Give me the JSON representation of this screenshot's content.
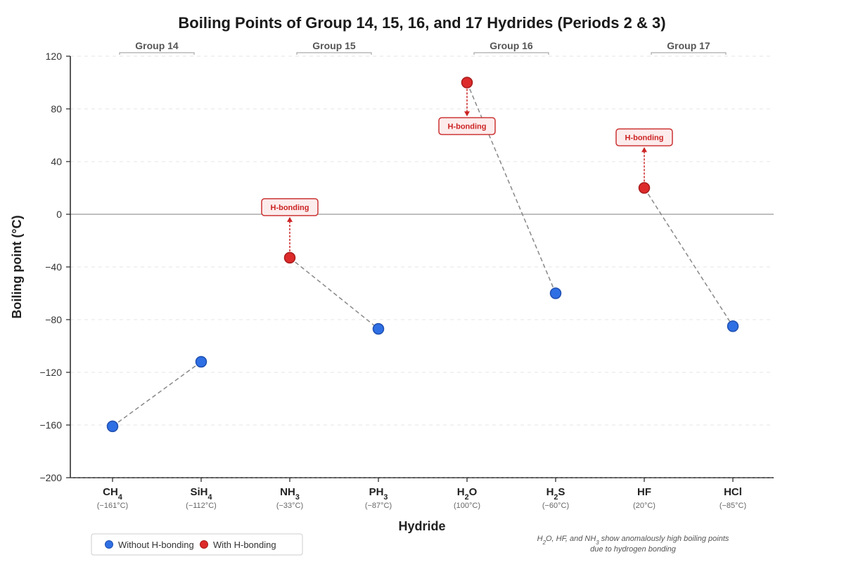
{
  "chart_data": {
    "type": "scatter",
    "title": "Boiling Points of Group 14, 15, 16, and 17 Hydrides (Periods 2 & 3)",
    "xlabel": "Hydride",
    "ylabel": "Boiling point (°C)",
    "ylim": [
      -200,
      120
    ],
    "yticks": [
      120,
      80,
      40,
      0,
      -40,
      -80,
      -120,
      -160,
      -200
    ],
    "ytick_labels": [
      "120",
      "80",
      "40",
      "0",
      "−40",
      "−80",
      "−120",
      "−160",
      "−200"
    ],
    "grid": true,
    "points": [
      {
        "main": "CH",
        "sub": "4",
        "rest": "",
        "value": -161,
        "label": "(−161°C)",
        "hbond": false
      },
      {
        "main": "SiH",
        "sub": "4",
        "rest": "",
        "value": -112,
        "label": "(−112°C)",
        "hbond": false
      },
      {
        "main": "NH",
        "sub": "3",
        "rest": "",
        "value": -33,
        "label": "(−33°C)",
        "hbond": true
      },
      {
        "main": "PH",
        "sub": "3",
        "rest": "",
        "value": -87,
        "label": "(−87°C)",
        "hbond": false
      },
      {
        "main": "H",
        "sub": "2",
        "rest": "O",
        "value": 100,
        "label": "(100°C)",
        "hbond": true
      },
      {
        "main": "H",
        "sub": "2",
        "rest": "S",
        "value": -60,
        "label": "(−60°C)",
        "hbond": false
      },
      {
        "main": "HF",
        "sub": "",
        "rest": "",
        "value": 20,
        "label": "(20°C)",
        "hbond": true
      },
      {
        "main": "HCl",
        "sub": "",
        "rest": "",
        "value": -85,
        "label": "(−85°C)",
        "hbond": false
      }
    ],
    "groups": [
      {
        "name": "Group 14",
        "indices": [
          0,
          1
        ]
      },
      {
        "name": "Group 15",
        "indices": [
          2,
          3
        ]
      },
      {
        "name": "Group 16",
        "indices": [
          4,
          5
        ]
      },
      {
        "name": "Group 17",
        "indices": [
          6,
          7
        ]
      }
    ],
    "annotations": [
      {
        "index": 2,
        "text": "H-bonding",
        "direction": "up"
      },
      {
        "index": 4,
        "text": "H-bonding",
        "direction": "down"
      },
      {
        "index": 6,
        "text": "H-bonding",
        "direction": "up"
      }
    ],
    "legend": {
      "position": "bottom-left",
      "items": [
        {
          "label": "Without H-bonding",
          "color": "#2f6fe4"
        },
        {
          "label": "With H-bonding",
          "color": "#dd2a2a"
        }
      ]
    },
    "note_lines": [
      {
        "parts": [
          "H",
          "2",
          "O, HF, and NH",
          "3",
          " show anomalously high boiling points"
        ]
      },
      {
        "parts": [
          "due to hydrogen bonding"
        ]
      }
    ]
  },
  "colors": {
    "no_hbond": "#2f6fe4",
    "no_hbond_stroke": "#1f4fb0",
    "hbond": "#dd2a2a",
    "hbond_stroke": "#a81c1c",
    "connector": "#888888",
    "grid": "#e6e6e6",
    "zero_line": "#aaaaaa",
    "annotation_fill": "#fdecec",
    "annotation_stroke": "#cc3333"
  }
}
